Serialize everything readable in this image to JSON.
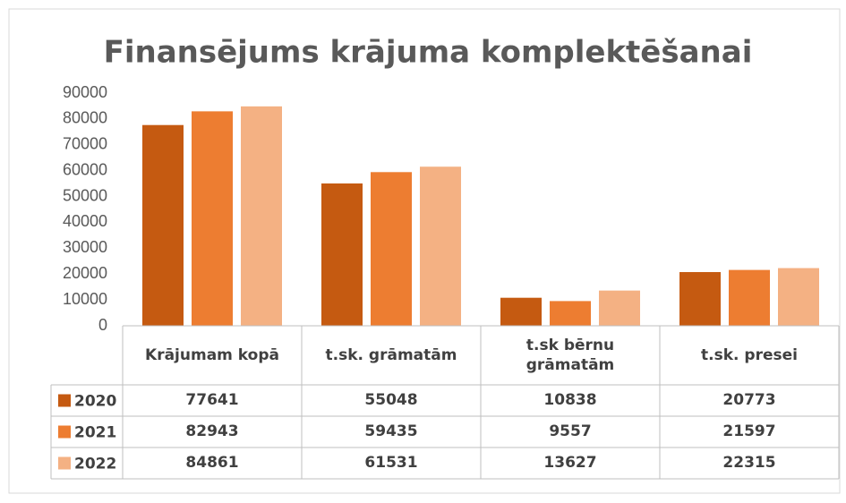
{
  "chart_data": {
    "type": "bar",
    "title": "Finansējums krājuma komplektēšanai",
    "categories": [
      "Krājumam kopā",
      "t.sk. grāmatām",
      "t.sk bērnu grāmatām",
      "t.sk. presei"
    ],
    "series": [
      {
        "name": "2020",
        "color": "#c55a11",
        "values": [
          77641,
          55048,
          10838,
          20773
        ]
      },
      {
        "name": "2021",
        "color": "#ed7d31",
        "values": [
          82943,
          59435,
          9557,
          21597
        ]
      },
      {
        "name": "2022",
        "color": "#f4b183",
        "values": [
          84861,
          61531,
          13627,
          22315
        ]
      }
    ],
    "ylim": [
      0,
      90000
    ],
    "yticks": [
      0,
      10000,
      20000,
      30000,
      40000,
      50000,
      60000,
      70000,
      80000,
      90000
    ],
    "grid": false,
    "data_table": true
  }
}
